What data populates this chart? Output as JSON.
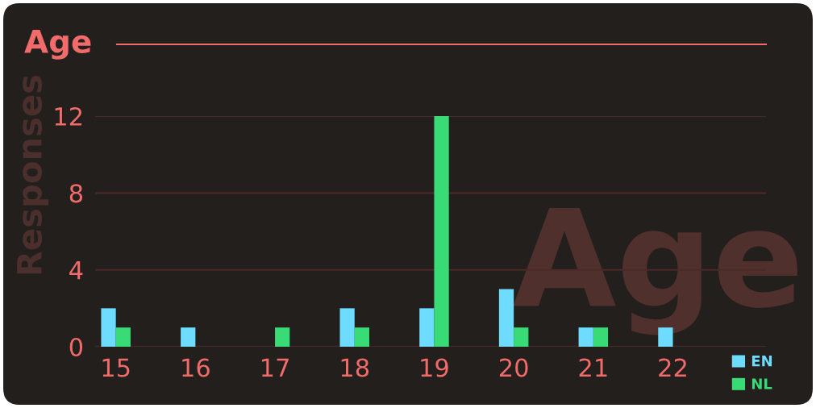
{
  "chart_data": {
    "type": "bar",
    "title": "Age",
    "ylabel": "Responses",
    "categories": [
      "15",
      "16",
      "17",
      "18",
      "19",
      "20",
      "21",
      "22"
    ],
    "series": [
      {
        "name": "EN",
        "color": "#6ddcff",
        "values": [
          2,
          1,
          0,
          2,
          2,
          3,
          1,
          1
        ]
      },
      {
        "name": "NL",
        "color": "#39db76",
        "values": [
          1,
          0,
          1,
          1,
          12,
          1,
          1,
          0
        ]
      }
    ],
    "ylim": [
      0,
      12
    ],
    "yticks": [
      0,
      4,
      8,
      12
    ],
    "grid": "y",
    "legend": "bottom right",
    "annotations": [
      "Age"
    ]
  }
}
